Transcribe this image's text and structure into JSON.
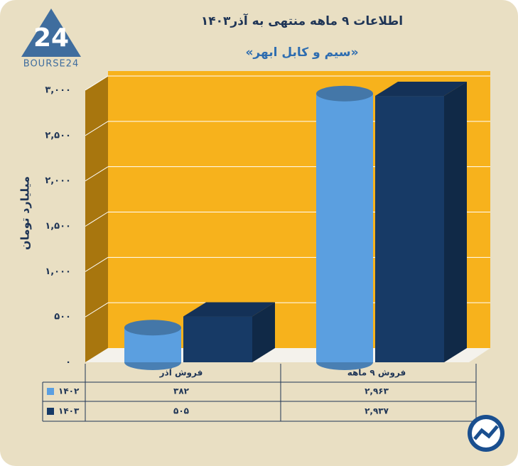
{
  "brand": {
    "mark": "24",
    "name": "BOURSE24"
  },
  "chart_data": {
    "type": "bar",
    "title": "اطلاعات ۹ ماهه منتهی به آذر۱۴۰۳",
    "subtitle": "«سیم و کابل ابهر»",
    "y_label": "میلیارد تومان",
    "categories": [
      "فروش آذر",
      "فروش ۹ ماهه"
    ],
    "series": [
      {
        "name": "۱۴۰۲",
        "color": "#5b9fe0",
        "values": [
          382,
          2963
        ],
        "value_labels": [
          "۳۸۲",
          "۲,۹۶۳"
        ]
      },
      {
        "name": "۱۴۰۳",
        "color": "#173a66",
        "values": [
          505,
          2937
        ],
        "value_labels": [
          "۵۰۵",
          "۲,۹۳۷"
        ]
      }
    ],
    "ylim": [
      0,
      3000
    ],
    "yticks": [
      {
        "value": 0,
        "label": "۰"
      },
      {
        "value": 500,
        "label": "۵۰۰"
      },
      {
        "value": 1000,
        "label": "۱,۰۰۰"
      },
      {
        "value": 1500,
        "label": "۱,۵۰۰"
      },
      {
        "value": 2000,
        "label": "۲,۰۰۰"
      },
      {
        "value": 2500,
        "label": "۲,۵۰۰"
      },
      {
        "value": 3000,
        "label": "۳,۰۰۰"
      }
    ],
    "grid": true
  }
}
